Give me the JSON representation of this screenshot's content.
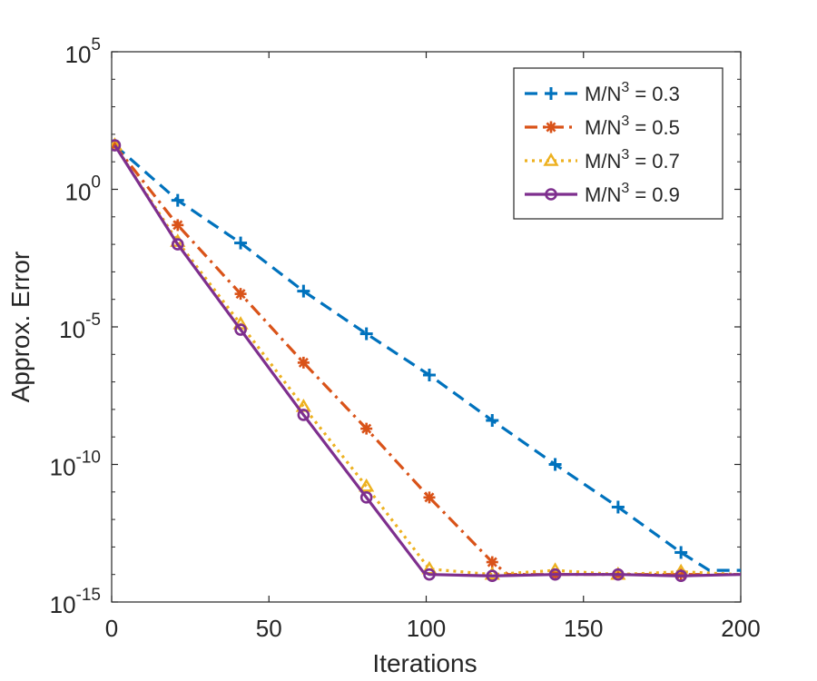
{
  "chart_data": {
    "type": "line",
    "title": "",
    "xlabel": "Iterations",
    "ylabel": "Approx. Error",
    "yscale": "log",
    "xlim": [
      0,
      200
    ],
    "ylim_exponents": [
      -15,
      5
    ],
    "xticks": [
      0,
      50,
      100,
      150,
      200
    ],
    "xtick_labels": [
      "0",
      "50",
      "100",
      "150",
      "200"
    ],
    "yticks_exponents": [
      -15,
      -10,
      -5,
      0,
      5
    ],
    "ytick_labels": [
      {
        "base": "10",
        "exp": "-15"
      },
      {
        "base": "10",
        "exp": "-10"
      },
      {
        "base": "10",
        "exp": "-5"
      },
      {
        "base": "10",
        "exp": "0"
      },
      {
        "base": "10",
        "exp": "5"
      }
    ],
    "grid": false,
    "legend_position": "top-right",
    "series": [
      {
        "name": "M/N^3 = 0.3",
        "label_parts": {
          "prefix": "M/N",
          "sup": "3",
          "suffix": " = 0.3"
        },
        "color": "#0072BD",
        "line_style": "dashed",
        "marker": "plus",
        "x": [
          1,
          21,
          41,
          61,
          81,
          101,
          121,
          141,
          161,
          181,
          190,
          200
        ],
        "log10_y": [
          1.6,
          -0.4,
          -1.95,
          -3.7,
          -5.25,
          -6.75,
          -8.4,
          -10.0,
          -11.55,
          -13.2,
          -13.85,
          -13.85
        ],
        "marker_x": [
          21,
          41,
          61,
          81,
          101,
          121,
          141,
          161,
          181
        ],
        "marker_log10_y": [
          -0.4,
          -1.95,
          -3.7,
          -5.25,
          -6.75,
          -8.4,
          -10.0,
          -11.55,
          -13.2
        ]
      },
      {
        "name": "M/N^3 = 0.5",
        "label_parts": {
          "prefix": "M/N",
          "sup": "3",
          "suffix": " = 0.5"
        },
        "color": "#D95319",
        "line_style": "dashdot",
        "marker": "asterisk",
        "x": [
          1,
          21,
          41,
          61,
          81,
          101,
          121,
          126,
          141,
          161,
          181,
          200
        ],
        "log10_y": [
          1.6,
          -1.3,
          -3.8,
          -6.3,
          -8.7,
          -11.2,
          -13.55,
          -14.0,
          -14.0,
          -14.0,
          -14.0,
          -14.0
        ],
        "marker_x": [
          1,
          21,
          41,
          61,
          81,
          101,
          121,
          141,
          161,
          181
        ],
        "marker_log10_y": [
          1.6,
          -1.3,
          -3.8,
          -6.3,
          -8.7,
          -11.2,
          -13.55,
          -14.0,
          -14.0,
          -14.0
        ]
      },
      {
        "name": "M/N^3 = 0.7",
        "label_parts": {
          "prefix": "M/N",
          "sup": "3",
          "suffix": " = 0.7"
        },
        "color": "#EDB120",
        "line_style": "dotted",
        "marker": "triangle",
        "x": [
          1,
          21,
          41,
          61,
          81,
          101,
          121,
          141,
          161,
          181,
          200
        ],
        "log10_y": [
          1.6,
          -1.9,
          -4.9,
          -7.9,
          -10.8,
          -13.8,
          -14.0,
          -13.85,
          -14.0,
          -13.9,
          -14.0
        ],
        "marker_x": [
          1,
          21,
          41,
          61,
          81,
          101,
          121,
          141,
          161,
          181
        ],
        "marker_log10_y": [
          1.6,
          -1.9,
          -4.9,
          -7.9,
          -10.8,
          -13.8,
          -14.0,
          -13.85,
          -14.0,
          -13.9
        ]
      },
      {
        "name": "M/N^3 = 0.9",
        "label_parts": {
          "prefix": "M/N",
          "sup": "3",
          "suffix": " = 0.9"
        },
        "color": "#7E2F8E",
        "line_style": "solid",
        "marker": "circle",
        "x": [
          1,
          21,
          41,
          61,
          81,
          99,
          101,
          121,
          141,
          161,
          181,
          200
        ],
        "log10_y": [
          1.6,
          -2.0,
          -5.1,
          -8.2,
          -11.2,
          -13.9,
          -14.0,
          -14.05,
          -14.0,
          -14.0,
          -14.05,
          -14.0
        ],
        "marker_x": [
          1,
          21,
          41,
          61,
          81,
          101,
          121,
          141,
          161,
          181
        ],
        "marker_log10_y": [
          1.6,
          -2.0,
          -5.1,
          -8.2,
          -11.2,
          -14.0,
          -14.05,
          -14.0,
          -14.0,
          -14.05
        ]
      }
    ]
  }
}
